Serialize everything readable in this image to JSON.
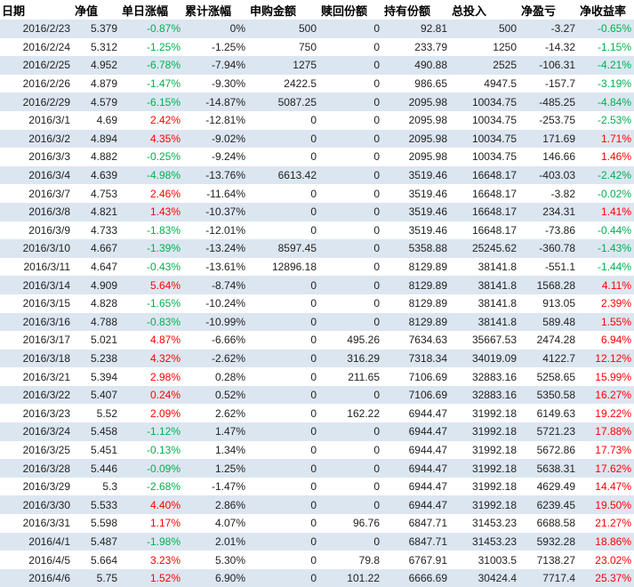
{
  "colors": {
    "band": "#dce6f1",
    "positive": "#ff0000",
    "negative": "#00b050"
  },
  "table": {
    "headers": [
      "日期",
      "净值",
      "单日涨幅",
      "累计涨幅",
      "申购金额",
      "赎回份额",
      "持有份额",
      "总投入",
      "净盈亏",
      "净收益率"
    ],
    "rows": [
      [
        "2016/2/23",
        "5.379",
        "-0.87%",
        "0%",
        "500",
        "0",
        "92.81",
        "500",
        "-3.27",
        "-0.65%"
      ],
      [
        "2016/2/24",
        "5.312",
        "-1.25%",
        "-1.25%",
        "750",
        "0",
        "233.79",
        "1250",
        "-14.32",
        "-1.15%"
      ],
      [
        "2016/2/25",
        "4.952",
        "-6.78%",
        "-7.94%",
        "1275",
        "0",
        "490.88",
        "2525",
        "-106.31",
        "-4.21%"
      ],
      [
        "2016/2/26",
        "4.879",
        "-1.47%",
        "-9.30%",
        "2422.5",
        "0",
        "986.65",
        "4947.5",
        "-157.7",
        "-3.19%"
      ],
      [
        "2016/2/29",
        "4.579",
        "-6.15%",
        "-14.87%",
        "5087.25",
        "0",
        "2095.98",
        "10034.75",
        "-485.25",
        "-4.84%"
      ],
      [
        "2016/3/1",
        "4.69",
        "2.42%",
        "-12.81%",
        "0",
        "0",
        "2095.98",
        "10034.75",
        "-253.75",
        "-2.53%"
      ],
      [
        "2016/3/2",
        "4.894",
        "4.35%",
        "-9.02%",
        "0",
        "0",
        "2095.98",
        "10034.75",
        "171.69",
        "1.71%"
      ],
      [
        "2016/3/3",
        "4.882",
        "-0.25%",
        "-9.24%",
        "0",
        "0",
        "2095.98",
        "10034.75",
        "146.66",
        "1.46%"
      ],
      [
        "2016/3/4",
        "4.639",
        "-4.98%",
        "-13.76%",
        "6613.42",
        "0",
        "3519.46",
        "16648.17",
        "-403.03",
        "-2.42%"
      ],
      [
        "2016/3/7",
        "4.753",
        "2.46%",
        "-11.64%",
        "0",
        "0",
        "3519.46",
        "16648.17",
        "-3.82",
        "-0.02%"
      ],
      [
        "2016/3/8",
        "4.821",
        "1.43%",
        "-10.37%",
        "0",
        "0",
        "3519.46",
        "16648.17",
        "234.31",
        "1.41%"
      ],
      [
        "2016/3/9",
        "4.733",
        "-1.83%",
        "-12.01%",
        "0",
        "0",
        "3519.46",
        "16648.17",
        "-73.86",
        "-0.44%"
      ],
      [
        "2016/3/10",
        "4.667",
        "-1.39%",
        "-13.24%",
        "8597.45",
        "0",
        "5358.88",
        "25245.62",
        "-360.78",
        "-1.43%"
      ],
      [
        "2016/3/11",
        "4.647",
        "-0.43%",
        "-13.61%",
        "12896.18",
        "0",
        "8129.89",
        "38141.8",
        "-551.1",
        "-1.44%"
      ],
      [
        "2016/3/14",
        "4.909",
        "5.64%",
        "-8.74%",
        "0",
        "0",
        "8129.89",
        "38141.8",
        "1568.28",
        "4.11%"
      ],
      [
        "2016/3/15",
        "4.828",
        "-1.65%",
        "-10.24%",
        "0",
        "0",
        "8129.89",
        "38141.8",
        "913.05",
        "2.39%"
      ],
      [
        "2016/3/16",
        "4.788",
        "-0.83%",
        "-10.99%",
        "0",
        "0",
        "8129.89",
        "38141.8",
        "589.48",
        "1.55%"
      ],
      [
        "2016/3/17",
        "5.021",
        "4.87%",
        "-6.66%",
        "0",
        "495.26",
        "7634.63",
        "35667.53",
        "2474.28",
        "6.94%"
      ],
      [
        "2016/3/18",
        "5.238",
        "4.32%",
        "-2.62%",
        "0",
        "316.29",
        "7318.34",
        "34019.09",
        "4122.7",
        "12.12%"
      ],
      [
        "2016/3/21",
        "5.394",
        "2.98%",
        "0.28%",
        "0",
        "211.65",
        "7106.69",
        "32883.16",
        "5258.65",
        "15.99%"
      ],
      [
        "2016/3/22",
        "5.407",
        "0.24%",
        "0.52%",
        "0",
        "0",
        "7106.69",
        "32883.16",
        "5350.58",
        "16.27%"
      ],
      [
        "2016/3/23",
        "5.52",
        "2.09%",
        "2.62%",
        "0",
        "162.22",
        "6944.47",
        "31992.18",
        "6149.63",
        "19.22%"
      ],
      [
        "2016/3/24",
        "5.458",
        "-1.12%",
        "1.47%",
        "0",
        "0",
        "6944.47",
        "31992.18",
        "5721.23",
        "17.88%"
      ],
      [
        "2016/3/25",
        "5.451",
        "-0.13%",
        "1.34%",
        "0",
        "0",
        "6944.47",
        "31992.18",
        "5672.86",
        "17.73%"
      ],
      [
        "2016/3/28",
        "5.446",
        "-0.09%",
        "1.25%",
        "0",
        "0",
        "6944.47",
        "31992.18",
        "5638.31",
        "17.62%"
      ],
      [
        "2016/3/29",
        "5.3",
        "-2.68%",
        "-1.47%",
        "0",
        "0",
        "6944.47",
        "31992.18",
        "4629.49",
        "14.47%"
      ],
      [
        "2016/3/30",
        "5.533",
        "4.40%",
        "2.86%",
        "0",
        "0",
        "6944.47",
        "31992.18",
        "6239.45",
        "19.50%"
      ],
      [
        "2016/3/31",
        "5.598",
        "1.17%",
        "4.07%",
        "0",
        "96.76",
        "6847.71",
        "31453.23",
        "6688.58",
        "21.27%"
      ],
      [
        "2016/4/1",
        "5.487",
        "-1.98%",
        "2.01%",
        "0",
        "0",
        "6847.71",
        "31453.23",
        "5932.28",
        "18.86%"
      ],
      [
        "2016/4/5",
        "5.664",
        "3.23%",
        "5.30%",
        "0",
        "79.8",
        "6767.91",
        "31003.5",
        "7138.27",
        "23.02%"
      ],
      [
        "2016/4/6",
        "5.75",
        "1.52%",
        "6.90%",
        "0",
        "101.22",
        "6666.69",
        "30424.4",
        "7717.4",
        "25.37%"
      ]
    ]
  }
}
